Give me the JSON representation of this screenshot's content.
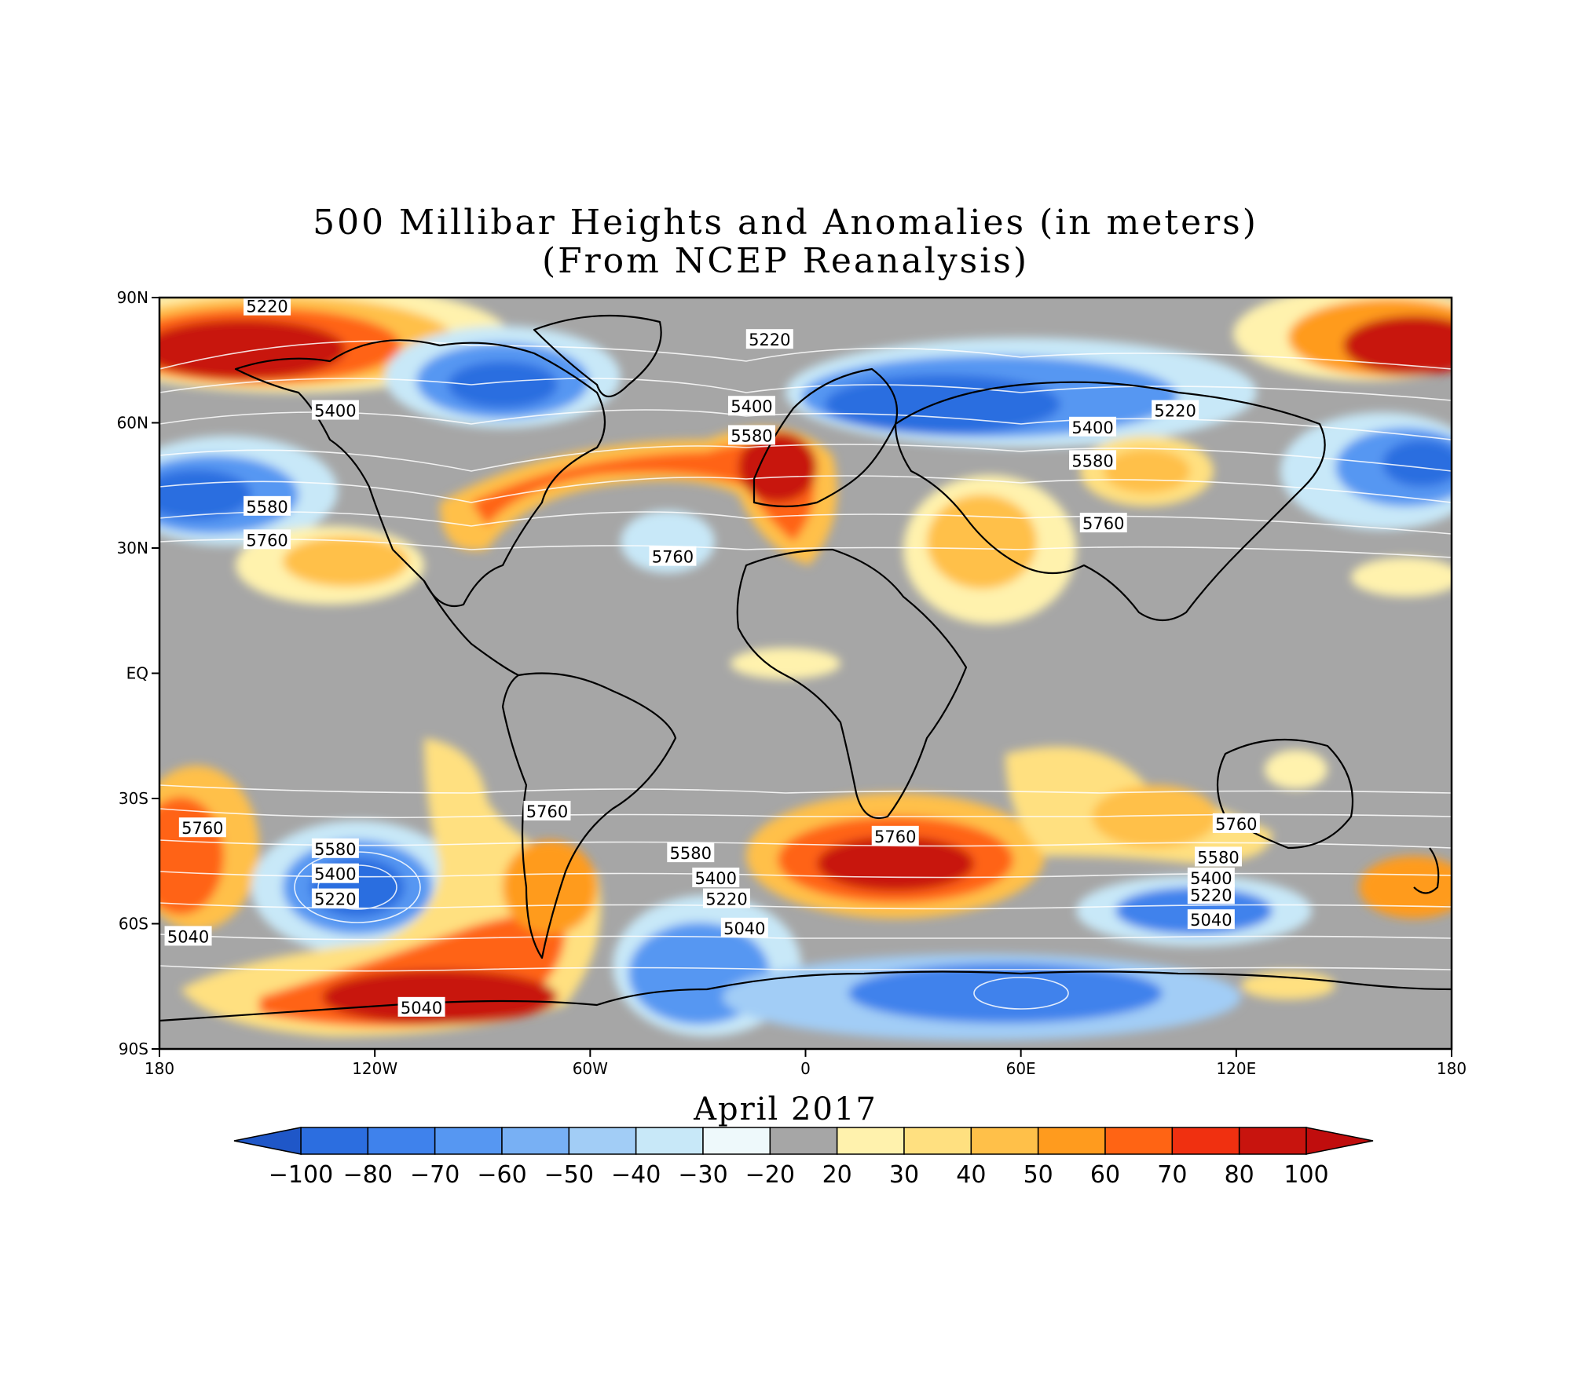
{
  "title": {
    "line1": "500 Millibar Heights and Anomalies (in meters)",
    "line2": "(From NCEP Reanalysis)"
  },
  "month_label": "April 2017",
  "axes": {
    "lat_ticks": [
      "90N",
      "60N",
      "30N",
      "EQ",
      "30S",
      "60S",
      "90S"
    ],
    "lon_ticks": [
      "180",
      "120W",
      "60W",
      "0",
      "60E",
      "120E",
      "180"
    ]
  },
  "colorbar": {
    "labels": [
      "−100",
      "−80",
      "−70",
      "−60",
      "−50",
      "−40",
      "−30",
      "−20",
      "20",
      "30",
      "40",
      "50",
      "60",
      "70",
      "80",
      "100"
    ],
    "colors": [
      "#2c6ee0",
      "#3f82ec",
      "#5697f2",
      "#78b0f4",
      "#a2cdf6",
      "#c8e8f8",
      "#eef9fb",
      "#a6a6a6",
      "#fff2ad",
      "#ffe080",
      "#ffc049",
      "#ff9b1e",
      "#ff6414",
      "#f03010",
      "#c8140e"
    ],
    "low_end_color": "#1f57c8",
    "high_end_color": "#c00d0d"
  },
  "contour_labels": [
    {
      "text": "5220",
      "lon": -150,
      "lat": 88
    },
    {
      "text": "5220",
      "lon": -10,
      "lat": 80
    },
    {
      "text": "5400",
      "lon": -131,
      "lat": 63
    },
    {
      "text": "5400",
      "lon": -15,
      "lat": 64
    },
    {
      "text": "5580",
      "lon": -15,
      "lat": 57
    },
    {
      "text": "5220",
      "lon": 103,
      "lat": 63
    },
    {
      "text": "5400",
      "lon": 80,
      "lat": 59
    },
    {
      "text": "5580",
      "lon": 80,
      "lat": 51
    },
    {
      "text": "5760",
      "lon": 83,
      "lat": 36
    },
    {
      "text": "5580",
      "lon": -150,
      "lat": 40
    },
    {
      "text": "5760",
      "lon": -150,
      "lat": 32
    },
    {
      "text": "5760",
      "lon": -37,
      "lat": 28
    },
    {
      "text": "5760",
      "lon": -72,
      "lat": -33
    },
    {
      "text": "5760",
      "lon": -168,
      "lat": -37
    },
    {
      "text": "5580",
      "lon": -131,
      "lat": -42
    },
    {
      "text": "5400",
      "lon": -131,
      "lat": -48
    },
    {
      "text": "5220",
      "lon": -131,
      "lat": -54
    },
    {
      "text": "5040",
      "lon": -172,
      "lat": -63
    },
    {
      "text": "5040",
      "lon": -107,
      "lat": -80
    },
    {
      "text": "5580",
      "lon": -32,
      "lat": -43
    },
    {
      "text": "5400",
      "lon": -25,
      "lat": -49
    },
    {
      "text": "5220",
      "lon": -22,
      "lat": -54
    },
    {
      "text": "5040",
      "lon": -17,
      "lat": -61
    },
    {
      "text": "5760",
      "lon": 25,
      "lat": -39
    },
    {
      "text": "5760",
      "lon": 120,
      "lat": -36
    },
    {
      "text": "5580",
      "lon": 115,
      "lat": -44
    },
    {
      "text": "5400",
      "lon": 113,
      "lat": -49
    },
    {
      "text": "5220",
      "lon": 113,
      "lat": -53
    },
    {
      "text": "5040",
      "lon": 113,
      "lat": -59
    }
  ]
}
